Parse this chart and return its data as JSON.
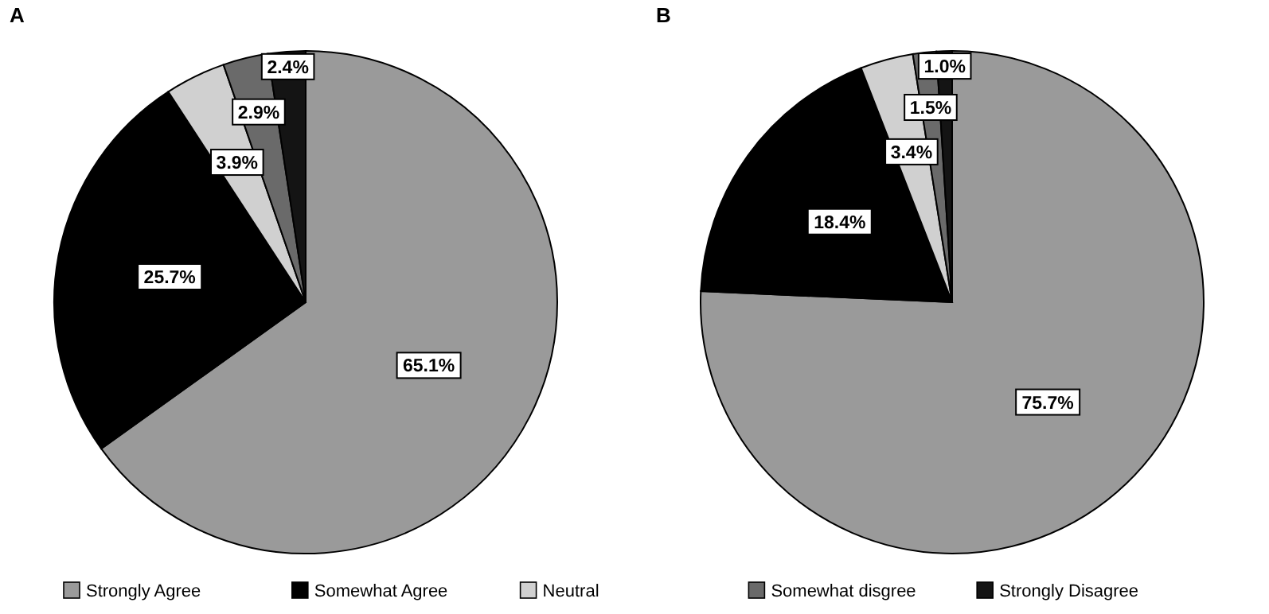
{
  "chart_data": [
    {
      "type": "pie",
      "title": "A",
      "categories": [
        "Strongly Agree",
        "Somewhat Agree",
        "Neutral",
        "Somewhat disgree",
        "Strongly Disagree"
      ],
      "values": [
        65.1,
        25.7,
        3.9,
        2.9,
        2.4
      ],
      "colors": [
        "#9a9a9a",
        "#000000",
        "#d0d0d0",
        "#6a6a6a",
        "#141414"
      ],
      "value_labels": [
        "65.1%",
        "25.7%",
        "3.9%",
        "2.9%",
        "2.4%"
      ],
      "legend": "bottom"
    },
    {
      "type": "pie",
      "title": "B",
      "categories": [
        null,
        null,
        null,
        null,
        null
      ],
      "values": [
        75.7,
        18.4,
        3.4,
        1.5,
        1.0
      ],
      "colors": [
        "#9a9a9a",
        "#000000",
        "#d0d0d0",
        "#6a6a6a",
        "#141414"
      ],
      "value_labels": [
        "75.7%",
        "18.4%",
        "3.4%",
        "1.5%",
        "1.0%"
      ]
    }
  ]
}
